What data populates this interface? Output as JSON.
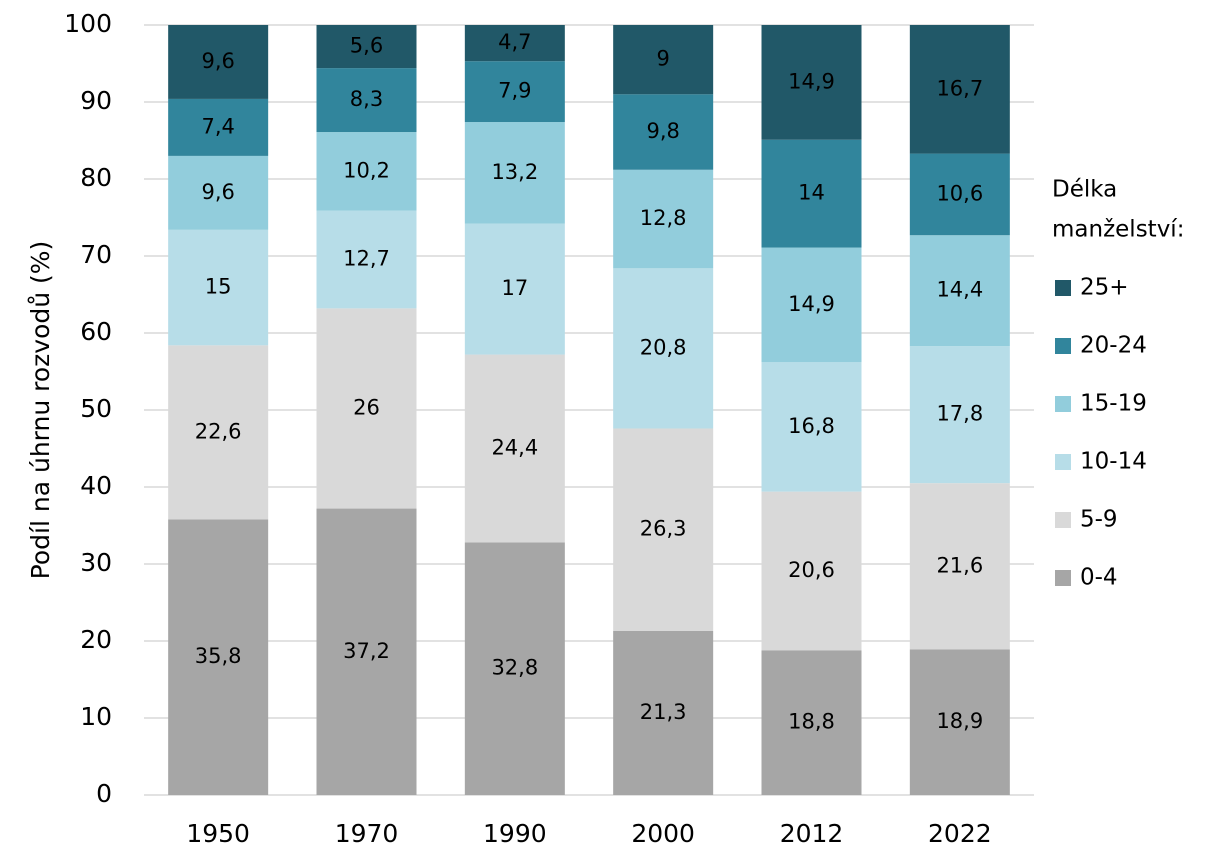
{
  "chart_data": {
    "type": "stacked_bar",
    "y_label": "Podíl na úhrnu rozvodů (%)",
    "legend_title": [
      "Délka",
      "manželství:"
    ],
    "legend_position": "right",
    "categories": [
      "1950",
      "1970",
      "1990",
      "2000",
      "2012",
      "2022"
    ],
    "ylim": [
      0,
      100
    ],
    "yticks": [
      0,
      10,
      20,
      30,
      40,
      50,
      60,
      70,
      80,
      90,
      100
    ],
    "grid": true,
    "series": [
      {
        "name": "0-4",
        "color": "#a6a6a6",
        "values": [
          35.8,
          37.2,
          32.8,
          21.3,
          18.8,
          18.9
        ],
        "value_labels": [
          "35,8",
          "37,2",
          "32,8",
          "21,3",
          "18,8",
          "18,9"
        ]
      },
      {
        "name": "5-9",
        "color": "#d9d9d9",
        "values": [
          22.6,
          26,
          24.4,
          26.3,
          20.6,
          21.6
        ],
        "value_labels": [
          "22,6",
          "26",
          "24,4",
          "26,3",
          "20,6",
          "21,6"
        ]
      },
      {
        "name": "10-14",
        "color": "#b7dde8",
        "values": [
          15,
          12.7,
          17,
          20.8,
          16.8,
          17.8
        ],
        "value_labels": [
          "15",
          "12,7",
          "17",
          "20,8",
          "16,8",
          "17,8"
        ]
      },
      {
        "name": "15-19",
        "color": "#92cddc",
        "values": [
          9.6,
          10.2,
          13.2,
          12.8,
          14.9,
          14.4
        ],
        "value_labels": [
          "9,6",
          "10,2",
          "13,2",
          "12,8",
          "14,9",
          "14,4"
        ]
      },
      {
        "name": "20-24",
        "color": "#31859c",
        "values": [
          7.4,
          8.3,
          7.9,
          9.8,
          14,
          10.6
        ],
        "value_labels": [
          "7,4",
          "8,3",
          "7,9",
          "9,8",
          "14",
          "10,6"
        ]
      },
      {
        "name": "25+",
        "color": "#215868",
        "values": [
          9.6,
          5.6,
          4.7,
          9,
          14.9,
          16.7
        ],
        "value_labels": [
          "9,6",
          "5,6",
          "4,7",
          "9",
          "14,9",
          "16,7"
        ]
      }
    ]
  }
}
